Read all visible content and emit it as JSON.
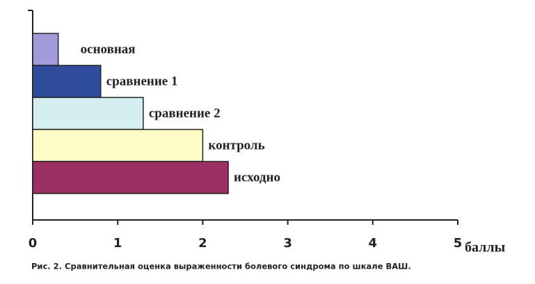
{
  "chart_data": {
    "type": "bar",
    "orientation": "horizontal",
    "categories": [
      "основная",
      "сравнение 1",
      "сравнение 2",
      "контроль",
      "исходно"
    ],
    "values": [
      0.3,
      0.8,
      1.3,
      2.0,
      2.3
    ],
    "colors": [
      "#a19cd9",
      "#2f4c9c",
      "#d5eef2",
      "#fdfcc7",
      "#9b3163"
    ],
    "xlim": [
      0,
      5
    ],
    "xticks": [
      0,
      1,
      2,
      3,
      4,
      5
    ],
    "x_label": "баллы",
    "caption": "Рис. 2. Сравнительная оценка выраженности болевого синдрома по  шкале ВАШ."
  }
}
